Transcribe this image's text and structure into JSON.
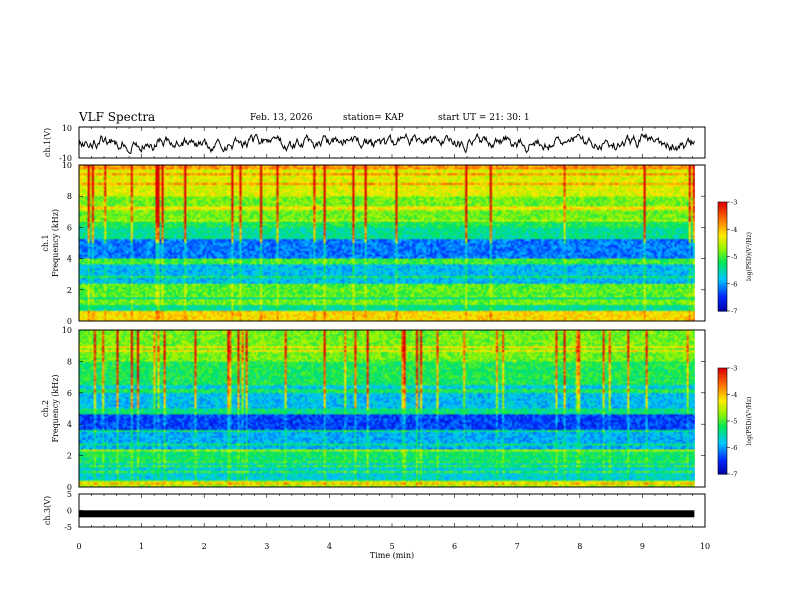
{
  "header": {
    "title": "VLF Spectra",
    "date": "Feb. 13, 2026",
    "station": "station= KAP",
    "start": "start  UT  =   21: 30: 1"
  },
  "chart_data": [
    {
      "type": "line",
      "name": "ch1-waveform",
      "ylabel": "ch.1(V)",
      "ylim": [
        -10,
        10
      ],
      "yticks": [
        "10",
        "-10"
      ],
      "xlim": [
        0,
        10
      ],
      "data_end": 9.83
    },
    {
      "type": "heatmap",
      "name": "ch1-spectrogram",
      "ylabel_line1": "ch.1",
      "ylabel_line2": "Frequency (kHz)",
      "ylim": [
        0,
        10
      ],
      "yticks": [
        "0",
        "2",
        "4",
        "6",
        "8",
        "10"
      ],
      "colorbar": {
        "label": "log(PSD)(V²/Hz)",
        "range": [
          -7,
          -3
        ],
        "ticks": [
          "-3",
          "-4",
          "-5",
          "-6",
          "-7"
        ]
      }
    },
    {
      "type": "heatmap",
      "name": "ch2-spectrogram",
      "ylabel_line1": "ch.2",
      "ylabel_line2": "Frequency (kHz)",
      "ylim": [
        0,
        10
      ],
      "yticks": [
        "0",
        "2",
        "4",
        "6",
        "8",
        "10"
      ],
      "colorbar": {
        "label": "log(PSD)(V²/Hz)",
        "range": [
          -7,
          -3
        ],
        "ticks": [
          "-3",
          "-4",
          "-5",
          "-6",
          "-7"
        ]
      }
    },
    {
      "type": "line",
      "name": "ch3-waveform",
      "ylabel": "ch.3(V)",
      "ylim": [
        -5,
        5
      ],
      "yticks": [
        "5",
        "0",
        "-5"
      ],
      "baseline_value": -1
    }
  ],
  "xaxis": {
    "label": "Time  (min)",
    "ticks": [
      "0",
      "1",
      "2",
      "3",
      "4",
      "5",
      "6",
      "7",
      "8",
      "9",
      "10"
    ]
  },
  "colors": {
    "c1": "#0000c8",
    "c2": "#1e6cff",
    "c3": "#00cfe0",
    "c4": "#00e060",
    "c5": "#a8f000",
    "c6": "#ffe000",
    "c7": "#ff7000",
    "c8": "#e00000"
  }
}
